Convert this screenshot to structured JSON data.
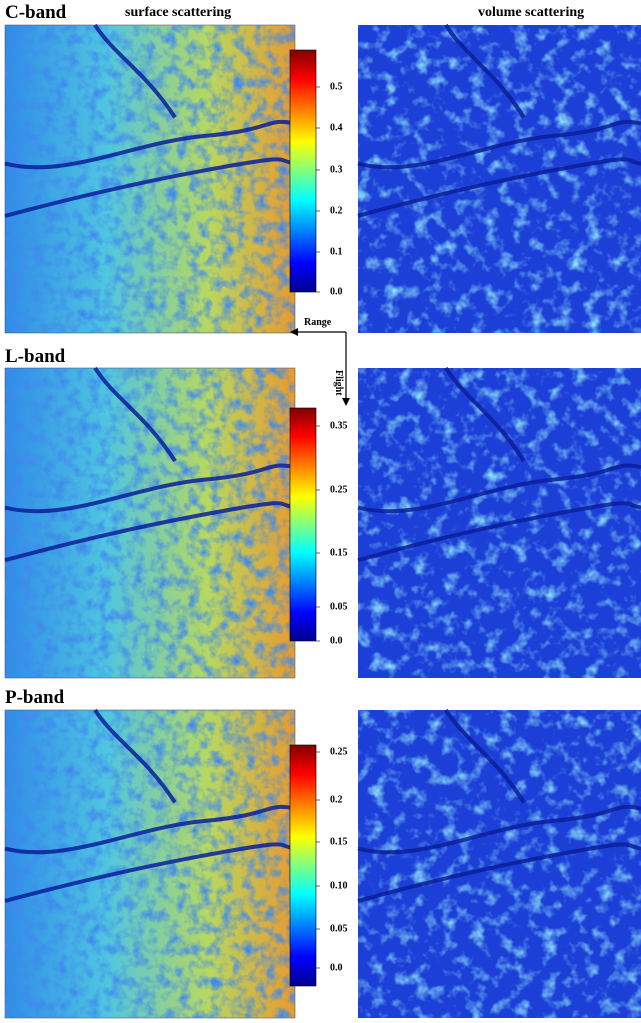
{
  "columns": [
    "surface scattering",
    "volume scattering"
  ],
  "panels": [
    {
      "band": "C-band",
      "colorbar": [
        "0.5",
        "0.4",
        "0.3",
        "0.2",
        "0.1",
        "0.0"
      ]
    },
    {
      "band": "L-band",
      "colorbar": [
        "0.35",
        "0.25",
        "0.15",
        "0.05",
        "0.0"
      ]
    },
    {
      "band": "P-band",
      "colorbar": [
        "0.25",
        "0.2",
        "0.15",
        "0.10",
        "0.05",
        "0.0"
      ]
    }
  ],
  "annotations": {
    "range": "Range",
    "flight": "Flight"
  }
}
